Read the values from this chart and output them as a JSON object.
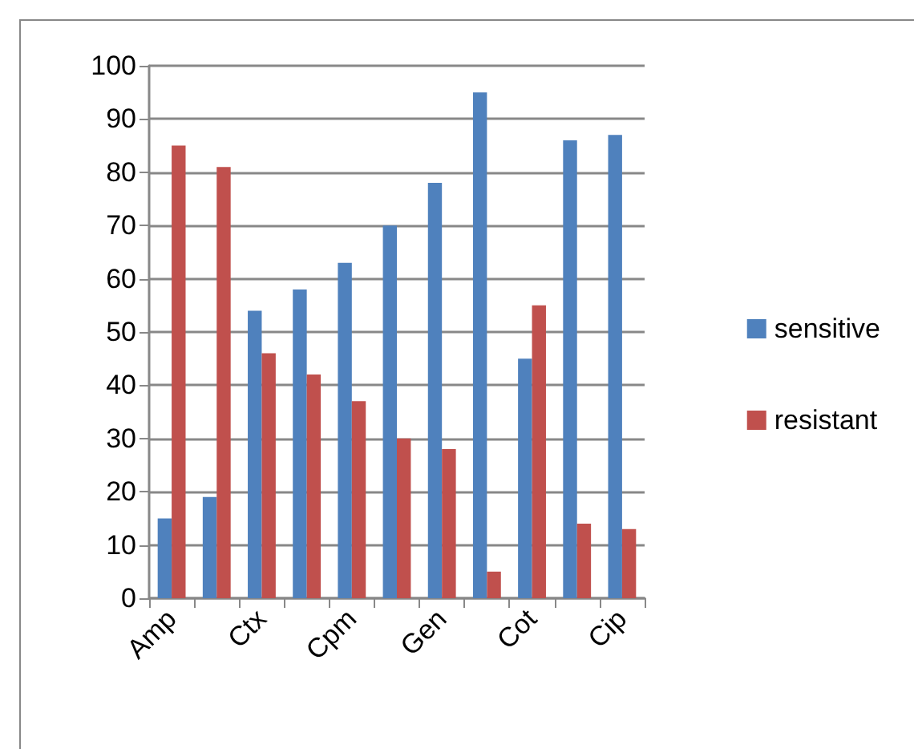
{
  "chart_data": {
    "type": "bar",
    "categories": [
      "Amp",
      null,
      "Ctx",
      null,
      "Cpm",
      null,
      "Gen",
      null,
      "Cot",
      null,
      "Cip"
    ],
    "series": [
      {
        "name": "sensitive",
        "color": "#4f81bd",
        "values": [
          15,
          19,
          54,
          58,
          63,
          70,
          78,
          95,
          45,
          86,
          87
        ]
      },
      {
        "name": "resistant",
        "color": "#c0504d",
        "values": [
          85,
          81,
          46,
          42,
          37,
          30,
          28,
          5,
          55,
          14,
          13
        ]
      }
    ],
    "ylim": [
      0,
      100
    ],
    "yticks": [
      0,
      10,
      20,
      30,
      40,
      50,
      60,
      70,
      80,
      90,
      100
    ],
    "grid": "y",
    "legend": "right"
  }
}
